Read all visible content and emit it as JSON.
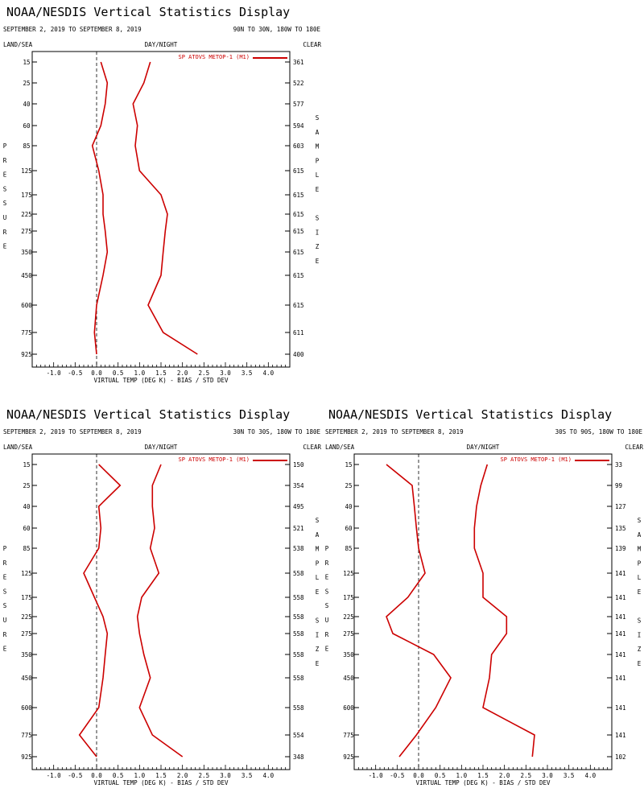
{
  "chart_data": [
    {
      "type": "line",
      "panel_position": "top-left",
      "title": "NOAA/NESDIS Vertical Statistics Display",
      "date_range": "SEPTEMBER 2, 2019 TO SEPTEMBER 8, 2019",
      "region": "90N TO 30N, 180W TO 180E",
      "land_sea": "LAND/SEA",
      "day_night": "DAY/NIGHT",
      "clear": "CLEAR",
      "xlabel": "VIRTUAL TEMP (DEG K) - BIAS / STD DEV",
      "ylabel": "PRESSURE",
      "right_label": "SAMPLE SIZE",
      "legend": "SP ATOVS METOP-1 (M1)",
      "color": "#cc0000",
      "xlim": [
        -1.5,
        4.5
      ],
      "xticks": [
        "-1.0",
        "-0.5",
        "0.0",
        "0.5",
        "1.0",
        "1.5",
        "2.0",
        "2.5",
        "3.0",
        "3.5",
        "4.0"
      ],
      "pressure_levels": [
        "15",
        "25",
        "40",
        "60",
        "85",
        "125",
        "175",
        "225",
        "275",
        "350",
        "450",
        "600",
        "775",
        "925"
      ],
      "sample_size": [
        "361",
        "522",
        "577",
        "594",
        "603",
        "615",
        "615",
        "615",
        "615",
        "615",
        "615",
        "615",
        "611",
        "400"
      ],
      "series": [
        {
          "stat": "bias",
          "values": [
            0.1,
            0.25,
            0.2,
            0.1,
            -0.1,
            0.05,
            0.15,
            0.15,
            0.2,
            0.25,
            0.15,
            0.0,
            -0.05,
            0.0
          ]
        },
        {
          "stat": "std_dev",
          "values": [
            1.25,
            1.1,
            0.85,
            0.95,
            0.9,
            1.0,
            1.5,
            1.65,
            1.6,
            1.55,
            1.5,
            1.2,
            1.55,
            2.35
          ]
        }
      ]
    },
    {
      "type": "line",
      "panel_position": "bottom-left",
      "title": "NOAA/NESDIS Vertical Statistics Display",
      "date_range": "SEPTEMBER 2, 2019 TO SEPTEMBER 8, 2019",
      "region": "30N TO 30S, 180W TO 180E",
      "land_sea": "LAND/SEA",
      "day_night": "DAY/NIGHT",
      "clear": "CLEAR",
      "xlabel": "VIRTUAL TEMP (DEG K) - BIAS / STD DEV",
      "ylabel": "PRESSURE",
      "right_label": "SAMPLE SIZE",
      "legend": "SP ATOVS METOP-1 (M1)",
      "color": "#cc0000",
      "xlim": [
        -1.5,
        4.5
      ],
      "xticks": [
        "-1.0",
        "-0.5",
        "0.0",
        "0.5",
        "1.0",
        "1.5",
        "2.0",
        "2.5",
        "3.0",
        "3.5",
        "4.0"
      ],
      "pressure_levels": [
        "15",
        "25",
        "40",
        "60",
        "85",
        "125",
        "175",
        "225",
        "275",
        "350",
        "450",
        "600",
        "775",
        "925"
      ],
      "sample_size": [
        "150",
        "354",
        "495",
        "521",
        "538",
        "558",
        "558",
        "558",
        "558",
        "558",
        "558",
        "558",
        "554",
        "348"
      ],
      "series": [
        {
          "stat": "bias",
          "values": [
            0.05,
            0.55,
            0.05,
            0.1,
            0.05,
            -0.3,
            -0.05,
            0.15,
            0.25,
            0.2,
            0.15,
            0.05,
            -0.4,
            0.0
          ]
        },
        {
          "stat": "std_dev",
          "values": [
            1.5,
            1.3,
            1.3,
            1.35,
            1.25,
            1.45,
            1.05,
            0.95,
            1.0,
            1.1,
            1.25,
            1.0,
            1.3,
            2.0
          ]
        }
      ]
    },
    {
      "type": "line",
      "panel_position": "bottom-right",
      "title": "NOAA/NESDIS Vertical Statistics Display",
      "date_range": "SEPTEMBER 2, 2019 TO SEPTEMBER 8, 2019",
      "region": "30S TO 90S, 180W TO 180E",
      "land_sea": "LAND/SEA",
      "day_night": "DAY/NIGHT",
      "clear": "CLEAR",
      "xlabel": "VIRTUAL TEMP (DEG K) - BIAS / STD DEV",
      "ylabel": "PRESSURE",
      "right_label": "SAMPLE SIZE",
      "legend": "SP ATOVS METOP-1 (M1)",
      "color": "#cc0000",
      "xlim": [
        -1.5,
        4.5
      ],
      "xticks": [
        "-1.0",
        "-0.5",
        "0.0",
        "0.5",
        "1.0",
        "1.5",
        "2.0",
        "2.5",
        "3.0",
        "3.5",
        "4.0"
      ],
      "pressure_levels": [
        "15",
        "25",
        "40",
        "60",
        "85",
        "125",
        "175",
        "225",
        "275",
        "350",
        "450",
        "600",
        "775",
        "925"
      ],
      "sample_size": [
        "33",
        "99",
        "127",
        "135",
        "139",
        "141",
        "141",
        "141",
        "141",
        "141",
        "141",
        "141",
        "141",
        "102"
      ],
      "series": [
        {
          "stat": "bias",
          "values": [
            -0.75,
            -0.15,
            -0.1,
            -0.05,
            0.0,
            0.15,
            -0.25,
            -0.75,
            -0.6,
            0.35,
            0.75,
            0.4,
            -0.05,
            -0.45
          ]
        },
        {
          "stat": "std_dev",
          "values": [
            1.6,
            1.45,
            1.35,
            1.3,
            1.3,
            1.5,
            1.5,
            2.05,
            2.05,
            1.7,
            1.65,
            1.5,
            2.7,
            2.65
          ]
        }
      ]
    }
  ]
}
